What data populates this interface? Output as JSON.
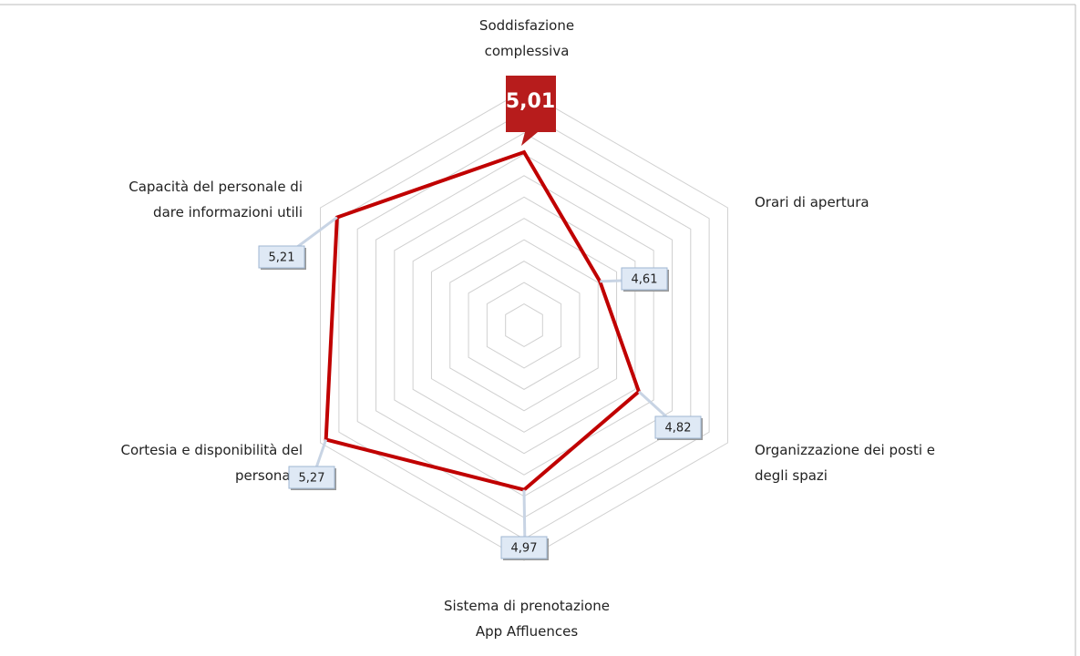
{
  "chart_data": {
    "type": "radar",
    "categories": [
      [
        "Soddisfazione",
        "complessiva"
      ],
      [
        "Orari di apertura"
      ],
      [
        "Organizzazione dei posti e",
        "degli spazi"
      ],
      [
        "Sistema di prenotazione",
        "App Affluences"
      ],
      [
        "Cortesia e disponibilità del",
        "personale"
      ],
      [
        "Capacità del personale di",
        "dare informazioni utili"
      ]
    ],
    "values": [
      5.01,
      4.61,
      4.82,
      4.97,
      5.27,
      5.21
    ],
    "value_labels": [
      "5,01",
      "4,61",
      "4,82",
      "4,97",
      "5,27",
      "5,21"
    ],
    "color": "#c00000",
    "rlim": [
      4.2,
      5.3
    ],
    "rticks": [
      4.3,
      4.4,
      4.5,
      4.6,
      4.7,
      4.8,
      4.9,
      5.0,
      5.1,
      5.2,
      5.3
    ],
    "grid": true
  }
}
